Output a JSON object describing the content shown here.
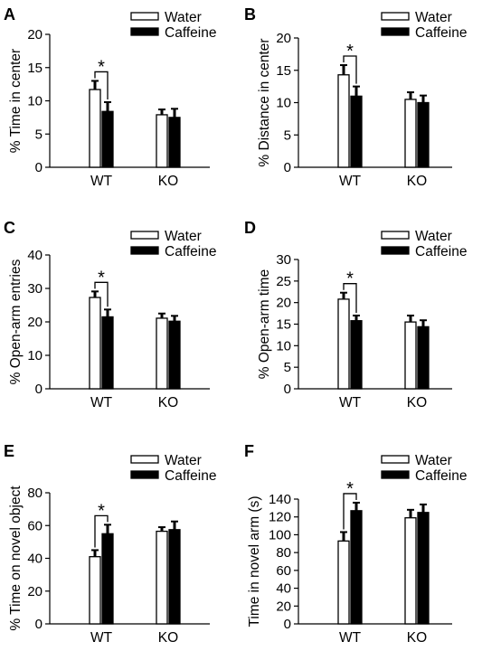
{
  "legend": {
    "water_label": "Water",
    "caffeine_label": "Caffeine"
  },
  "chart_data": [
    {
      "type": "bar",
      "panel_label": "A",
      "ylabel": "% Time in center",
      "categories": [
        "WT",
        "KO"
      ],
      "ylim": [
        0,
        20
      ],
      "yticks": [
        0,
        5,
        10,
        15,
        20
      ],
      "legend_position": "top-right",
      "series": [
        {
          "name": "Water",
          "fill": "#ffffff",
          "values": [
            11.7,
            7.9
          ],
          "errors": [
            1.3,
            0.8
          ]
        },
        {
          "name": "Caffeine",
          "fill": "#000000",
          "values": [
            8.4,
            7.5
          ],
          "errors": [
            1.4,
            1.3
          ]
        }
      ],
      "significance": {
        "category": "WT",
        "label": "*"
      }
    },
    {
      "type": "bar",
      "panel_label": "B",
      "ylabel": "% Distance in center",
      "categories": [
        "WT",
        "KO"
      ],
      "ylim": [
        0,
        20
      ],
      "yticks": [
        0,
        5,
        10,
        15,
        20
      ],
      "legend_position": "top-right",
      "series": [
        {
          "name": "Water",
          "fill": "#ffffff",
          "values": [
            14.3,
            10.5
          ],
          "errors": [
            1.5,
            1.1
          ]
        },
        {
          "name": "Caffeine",
          "fill": "#000000",
          "values": [
            11.0,
            10.0
          ],
          "errors": [
            1.5,
            1.1
          ]
        }
      ],
      "significance": {
        "category": "WT",
        "label": "*"
      }
    },
    {
      "type": "bar",
      "panel_label": "C",
      "ylabel": "% Open-arm entries",
      "categories": [
        "WT",
        "KO"
      ],
      "ylim": [
        0,
        40
      ],
      "yticks": [
        0,
        10,
        20,
        30,
        40
      ],
      "legend_position": "top-right",
      "series": [
        {
          "name": "Water",
          "fill": "#ffffff",
          "values": [
            27.3,
            21.1
          ],
          "errors": [
            1.8,
            1.4
          ]
        },
        {
          "name": "Caffeine",
          "fill": "#000000",
          "values": [
            21.5,
            20.2
          ],
          "errors": [
            2.2,
            1.6
          ]
        }
      ],
      "significance": {
        "category": "WT",
        "label": "*"
      }
    },
    {
      "type": "bar",
      "panel_label": "D",
      "ylabel": "% Open-arm time",
      "categories": [
        "WT",
        "KO"
      ],
      "ylim": [
        0,
        30
      ],
      "yticks": [
        0,
        5,
        10,
        15,
        20,
        25,
        30
      ],
      "legend_position": "top-right",
      "series": [
        {
          "name": "Water",
          "fill": "#ffffff",
          "values": [
            20.8,
            15.5
          ],
          "errors": [
            1.5,
            1.5
          ]
        },
        {
          "name": "Caffeine",
          "fill": "#000000",
          "values": [
            15.8,
            14.4
          ],
          "errors": [
            1.2,
            1.5
          ]
        }
      ],
      "significance": {
        "category": "WT",
        "label": "*"
      }
    },
    {
      "type": "bar",
      "panel_label": "E",
      "ylabel": "% Time on novel object",
      "categories": [
        "WT",
        "KO"
      ],
      "ylim": [
        0,
        80
      ],
      "yticks": [
        0,
        20,
        40,
        60,
        80
      ],
      "legend_position": "top-right",
      "series": [
        {
          "name": "Water",
          "fill": "#ffffff",
          "values": [
            41.0,
            56.5
          ],
          "errors": [
            4.0,
            2.5
          ]
        },
        {
          "name": "Caffeine",
          "fill": "#000000",
          "values": [
            55.0,
            57.5
          ],
          "errors": [
            5.5,
            5.0
          ]
        }
      ],
      "significance": {
        "category": "WT",
        "label": "*"
      }
    },
    {
      "type": "bar",
      "panel_label": "F",
      "ylabel": "Time in novel arm (s)",
      "categories": [
        "WT",
        "KO"
      ],
      "ylim": [
        0,
        140
      ],
      "yticks": [
        0,
        20,
        40,
        60,
        80,
        100,
        120,
        140
      ],
      "legend_position": "top-right",
      "series": [
        {
          "name": "Water",
          "fill": "#ffffff",
          "values": [
            93,
            119
          ],
          "errors": [
            10,
            9
          ]
        },
        {
          "name": "Caffeine",
          "fill": "#000000",
          "values": [
            127,
            125
          ],
          "errors": [
            9,
            9
          ]
        }
      ],
      "significance": {
        "category": "WT",
        "label": "*"
      }
    }
  ]
}
